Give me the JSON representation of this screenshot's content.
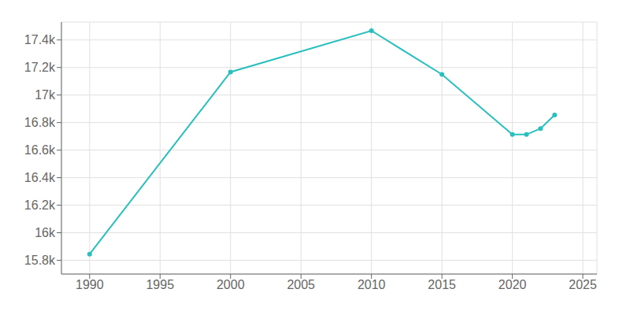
{
  "chart_data": {
    "type": "line",
    "x": [
      1990,
      2000,
      2010,
      2015,
      2020,
      2021,
      2022,
      2023
    ],
    "values": [
      15845,
      17167,
      17467,
      17150,
      16713,
      16713,
      16757,
      16855
    ],
    "color": "#2abfbf",
    "marker": "circle",
    "xlim": [
      1988,
      2026
    ],
    "ylim": [
      15700,
      17530
    ],
    "xticks": [
      1990,
      1995,
      2000,
      2005,
      2010,
      2015,
      2020,
      2025
    ],
    "yticks": [
      {
        "value": 15800,
        "label": "15.8k"
      },
      {
        "value": 16000,
        "label": "16k"
      },
      {
        "value": 16200,
        "label": "16.2k"
      },
      {
        "value": 16400,
        "label": "16.4k"
      },
      {
        "value": 16600,
        "label": "16.6k"
      },
      {
        "value": 16800,
        "label": "16.8k"
      },
      {
        "value": 17000,
        "label": "17k"
      },
      {
        "value": 17200,
        "label": "17.2k"
      },
      {
        "value": 17400,
        "label": "17.4k"
      }
    ],
    "grid": true
  }
}
